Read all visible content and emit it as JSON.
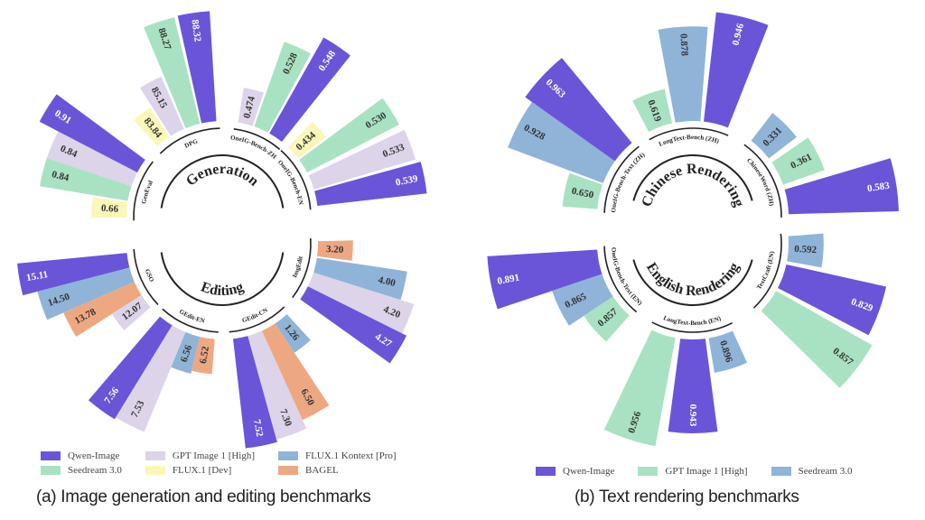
{
  "colors": {
    "Qwen-Image": "#6a55d8",
    "GPT Image 1 [High]": "#ddd4ea",
    "Seedream 3.0": "#a9e2c2",
    "FLUX.1 Kontext [Pro]": "#8fb4d8",
    "FLUX.1 [Dev]": "#faf7b8",
    "BAGEL": "#eda882"
  },
  "colors_right": {
    "Qwen-Image": "#6a55d8",
    "GPT Image 1 [High]": "#a9e2c2",
    "Seedream 3.0": "#8fb4d8"
  },
  "legend_left": [
    "Qwen-Image",
    "GPT Image 1 [High]",
    "FLUX.1 Kontext [Pro]",
    "Seedream 3.0",
    "FLUX.1 [Dev]",
    "BAGEL"
  ],
  "legend_right": [
    "Qwen-Image",
    "GPT Image 1 [High]",
    "Seedream 3.0"
  ],
  "captions": {
    "left": "(a) Image generation and editing benchmarks",
    "right": "(b) Text rendering benchmarks"
  },
  "chart_data": [
    {
      "type": "radial-bar",
      "title": "Generation",
      "groups": [
        {
          "label": "GenEval",
          "bars": [
            {
              "series": "FLUX.1 [Dev]",
              "value": 0.66,
              "label": "0.66"
            },
            {
              "series": "Seedream 3.0",
              "value": 0.84,
              "label": "0.84"
            },
            {
              "series": "GPT Image 1 [High]",
              "value": 0.84,
              "label": "0.84"
            },
            {
              "series": "Qwen-Image",
              "value": 0.91,
              "label": "0.91"
            }
          ]
        },
        {
          "label": "DPG",
          "bars": [
            {
              "series": "FLUX.1 [Dev]",
              "value": 83.84,
              "label": "83.84"
            },
            {
              "series": "GPT Image 1 [High]",
              "value": 85.15,
              "label": "85.15"
            },
            {
              "series": "Seedream 3.0",
              "value": 88.27,
              "label": "88.27"
            },
            {
              "series": "Qwen-Image",
              "value": 88.32,
              "label": "88.32"
            }
          ]
        },
        {
          "label": "OneIG-Bench-ZH",
          "bars": [
            {
              "series": "GPT Image 1 [High]",
              "value": 0.474,
              "label": "0.474"
            },
            {
              "series": "Seedream 3.0",
              "value": 0.528,
              "label": "0.528"
            },
            {
              "series": "Qwen-Image",
              "value": 0.548,
              "label": "0.548"
            }
          ]
        },
        {
          "label": "OneIG-Bench-EN",
          "bars": [
            {
              "series": "FLUX.1 [Dev]",
              "value": 0.434,
              "label": "0.434"
            },
            {
              "series": "Seedream 3.0",
              "value": 0.53,
              "label": "0.530"
            },
            {
              "series": "GPT Image 1 [High]",
              "value": 0.533,
              "label": "0.533"
            },
            {
              "series": "Qwen-Image",
              "value": 0.539,
              "label": "0.539"
            }
          ]
        }
      ]
    },
    {
      "type": "radial-bar",
      "title": "Editing",
      "groups": [
        {
          "label": "GSO",
          "bars": [
            {
              "series": "Qwen-Image",
              "value": 15.11,
              "label": "15.11"
            },
            {
              "series": "FLUX.1 Kontext [Pro]",
              "value": 14.5,
              "label": "14.50"
            },
            {
              "series": "BAGEL",
              "value": 13.78,
              "label": "13.78"
            },
            {
              "series": "GPT Image 1 [High]",
              "value": 12.07,
              "label": "12.07"
            }
          ]
        },
        {
          "label": "GEdit-EN",
          "bars": [
            {
              "series": "Qwen-Image",
              "value": 7.56,
              "label": "7.56"
            },
            {
              "series": "GPT Image 1 [High]",
              "value": 7.53,
              "label": "7.53"
            },
            {
              "series": "FLUX.1 Kontext [Pro]",
              "value": 6.56,
              "label": "6.56"
            },
            {
              "series": "BAGEL",
              "value": 6.52,
              "label": "6.52"
            }
          ]
        },
        {
          "label": "GEdit-CN",
          "bars": [
            {
              "series": "Qwen-Image",
              "value": 7.52,
              "label": "7.52"
            },
            {
              "series": "GPT Image 1 [High]",
              "value": 7.3,
              "label": "7.30"
            },
            {
              "series": "BAGEL",
              "value": 6.5,
              "label": "6.50"
            },
            {
              "series": "FLUX.1 Kontext [Pro]",
              "value": 1.26,
              "label": "1.26"
            }
          ]
        },
        {
          "label": "ImgEdit",
          "bars": [
            {
              "series": "BAGEL",
              "value": 3.2,
              "label": "3.20"
            },
            {
              "series": "FLUX.1 Kontext [Pro]",
              "value": 4.0,
              "label": "4.00"
            },
            {
              "series": "GPT Image 1 [High]",
              "value": 4.2,
              "label": "4.20"
            },
            {
              "series": "Qwen-Image",
              "value": 4.27,
              "label": "4.27"
            }
          ]
        }
      ]
    },
    {
      "type": "radial-bar",
      "title": "Chinese Rendering",
      "groups": [
        {
          "label": "OneIG-Bench-Text (ZH)",
          "bars": [
            {
              "series": "GPT Image 1 [High]",
              "value": 0.65,
              "label": "0.650"
            },
            {
              "series": "Seedream 3.0",
              "value": 0.928,
              "label": "0.928"
            },
            {
              "series": "Qwen-Image",
              "value": 0.963,
              "label": "0.963"
            }
          ]
        },
        {
          "label": "LongText-Bench (ZH)",
          "bars": [
            {
              "series": "GPT Image 1 [High]",
              "value": 0.619,
              "label": "0.619"
            },
            {
              "series": "Seedream 3.0",
              "value": 0.878,
              "label": "0.878"
            },
            {
              "series": "Qwen-Image",
              "value": 0.946,
              "label": "0.946"
            }
          ]
        },
        {
          "label": "ChineseWord (ZH)",
          "bars": [
            {
              "series": "Seedream 3.0",
              "value": 0.331,
              "label": "0.331"
            },
            {
              "series": "GPT Image 1 [High]",
              "value": 0.361,
              "label": "0.361"
            },
            {
              "series": "Qwen-Image",
              "value": 0.583,
              "label": "0.583"
            }
          ]
        }
      ]
    },
    {
      "type": "radial-bar",
      "title": "English Rendering",
      "groups": [
        {
          "label": "OneIG-Bench-Text (EN)",
          "bars": [
            {
              "series": "Qwen-Image",
              "value": 0.891,
              "label": "0.891"
            },
            {
              "series": "Seedream 3.0",
              "value": 0.865,
              "label": "0.865"
            },
            {
              "series": "GPT Image 1 [High]",
              "value": 0.857,
              "label": "0.857"
            }
          ]
        },
        {
          "label": "LongText-Bench (EN)",
          "bars": [
            {
              "series": "GPT Image 1 [High]",
              "value": 0.956,
              "label": "0.956"
            },
            {
              "series": "Qwen-Image",
              "value": 0.943,
              "label": "0.943"
            },
            {
              "series": "Seedream 3.0",
              "value": 0.896,
              "label": "0.896"
            }
          ]
        },
        {
          "label": "TextCraft (EN)",
          "bars": [
            {
              "series": "Seedream 3.0",
              "value": 0.592,
              "label": "0.592"
            },
            {
              "series": "Qwen-Image",
              "value": 0.829,
              "label": "0.829"
            },
            {
              "series": "GPT Image 1 [High]",
              "value": 0.857,
              "label": "0.857"
            }
          ]
        }
      ]
    }
  ]
}
